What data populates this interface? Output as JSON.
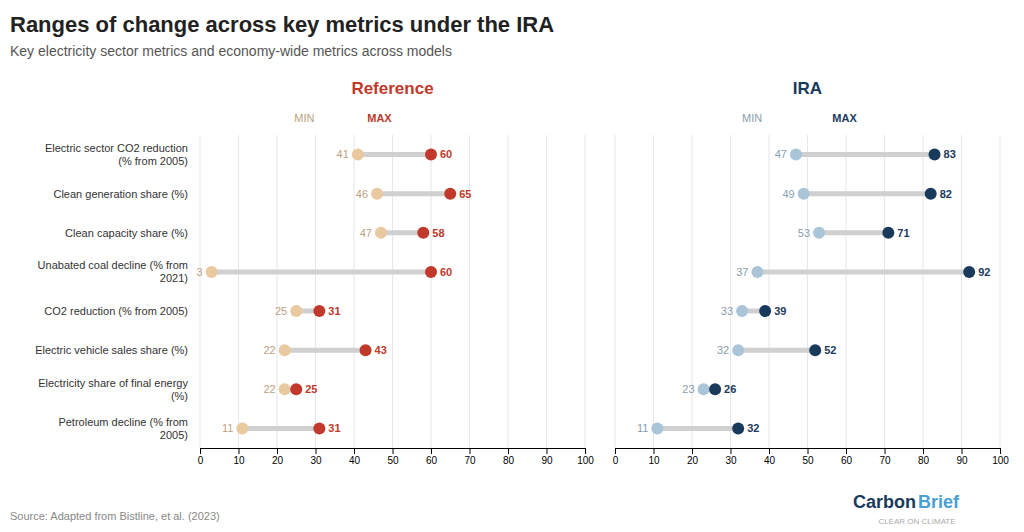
{
  "title": "Ranges of change across key metrics under the IRA",
  "subtitle": "Key electricity sector metrics and economy-wide metrics across models",
  "source": "Source: Adapted from Bistline, et al. (2023)",
  "annotations": [
    "Carbon",
    "Brief",
    "CLEAR ON CLIMATE"
  ],
  "chart_data": [
    {
      "type": "dumbbell",
      "title": "Reference",
      "color": "#c0392b",
      "categories": [
        "Electric sector CO2 reduction\n(% from 2005)",
        "Clean generation share (%)",
        "Clean capacity share (%)",
        "Unabated coal decline (% from\n2021)",
        "CO2 reduction (% from 2005)",
        "Electric vehicle sales share (%)",
        "Electricity share of final energy\n(%)",
        "Petroleum decline (% from\n2005)"
      ],
      "series": [
        {
          "name": "MIN",
          "color": "#e8c9a0",
          "values": [
            41,
            46,
            47,
            3,
            25,
            22,
            22,
            11
          ]
        },
        {
          "name": "MAX",
          "color": "#c0392b",
          "values": [
            60,
            65,
            58,
            60,
            31,
            43,
            25,
            31
          ]
        }
      ],
      "xlim": [
        0,
        100
      ],
      "xticks": [
        0,
        10,
        20,
        30,
        40,
        50,
        60,
        70,
        80,
        90,
        100
      ],
      "grid": true,
      "data_labels": true
    },
    {
      "type": "dumbbell",
      "title": "IRA",
      "color": "#1a3a5c",
      "categories": [
        "Electric sector CO2 reduction\n(% from 2005)",
        "Clean generation share (%)",
        "Clean capacity share (%)",
        "Unabated coal decline (% from\n2021)",
        "CO2 reduction (% from 2005)",
        "Electric vehicle sales share (%)",
        "Electricity share of final energy\n(%)",
        "Petroleum decline (% from\n2005)"
      ],
      "series": [
        {
          "name": "MIN",
          "color": "#aac4d8",
          "values": [
            47,
            49,
            53,
            37,
            33,
            32,
            23,
            11
          ]
        },
        {
          "name": "MAX",
          "color": "#1a3a5c",
          "values": [
            83,
            82,
            71,
            92,
            39,
            52,
            26,
            32
          ]
        }
      ],
      "xlim": [
        0,
        100
      ],
      "xticks": [
        0,
        10,
        20,
        30,
        40,
        50,
        60,
        70,
        80,
        90,
        100
      ],
      "grid": true,
      "data_labels": true
    }
  ]
}
